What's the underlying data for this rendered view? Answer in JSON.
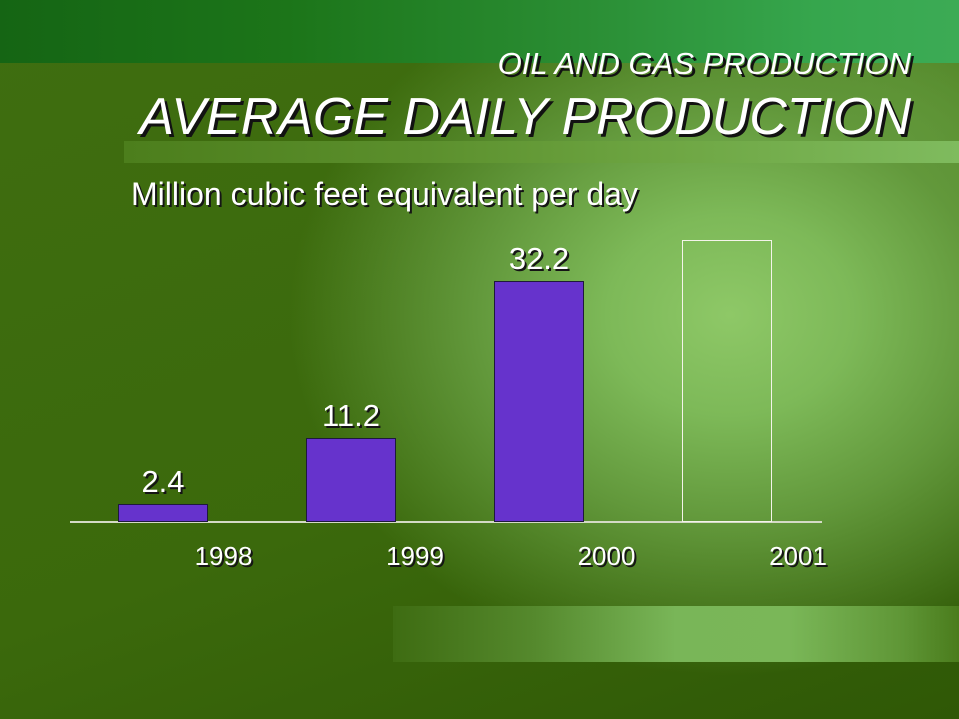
{
  "slide": {
    "section_title": "OIL AND GAS PRODUCTION"
  },
  "colors": {
    "text": "#ffffff",
    "text_shadow": "#121212",
    "baseline": "#d4dac6",
    "background": "#3b690c",
    "accent_green": "#7ab758"
  },
  "chart_data": {
    "type": "bar",
    "title": "AVERAGE DAILY PRODUCTION",
    "subtitle": "Million cubic feet equivalent per day",
    "categories": [
      "1998",
      "1999",
      "2000",
      "2001"
    ],
    "values": [
      2.4,
      11.2,
      32.2,
      37.6
    ],
    "data_labels": [
      "2.4",
      "11.2",
      "32.2",
      null
    ],
    "bar_fill": [
      "#6633cc",
      "#6633cc",
      "#6633cc",
      "transparent"
    ],
    "bar_stroke": [
      "#1e1a3c",
      "#1e1a3c",
      "#1e1a3c",
      "#f4f4ea"
    ],
    "ylim": [
      0,
      40
    ],
    "grid": false
  }
}
